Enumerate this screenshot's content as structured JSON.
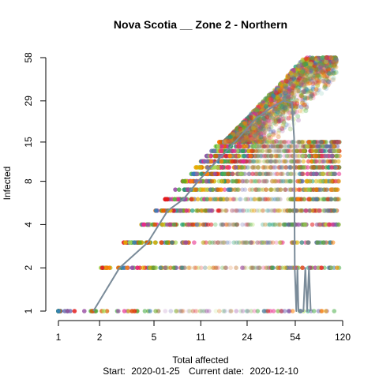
{
  "chart_data": {
    "type": "scatter",
    "title": "Nova Scotia __ Zone 2 - Northern",
    "xlabel": "Total affected",
    "ylabel": "Infected",
    "x_scale": "log",
    "y_scale": "log",
    "x_ticks": [
      1,
      2,
      5,
      11,
      24,
      54,
      120
    ],
    "y_ticks": [
      1,
      2,
      4,
      8,
      15,
      29,
      58
    ],
    "xlim": [
      1,
      120
    ],
    "ylim": [
      1,
      58
    ],
    "grid": false,
    "legend": "none",
    "footer": {
      "start_label": "Start:",
      "start_date": "2020-01-25",
      "current_label": "Current date:",
      "current_date": "2020-12-10"
    },
    "series": [
      {
        "kind": "observed-trajectory",
        "color": "#7a8b99",
        "points": [
          {
            "x": 1.8,
            "y": 1
          },
          {
            "x": 2.8,
            "y": 2
          },
          {
            "x": 4.5,
            "y": 3
          },
          {
            "x": 6.3,
            "y": 5
          },
          {
            "x": 8.2,
            "y": 6
          },
          {
            "x": 10.5,
            "y": 8
          },
          {
            "x": 13,
            "y": 10
          },
          {
            "x": 17,
            "y": 13
          },
          {
            "x": 22,
            "y": 17
          },
          {
            "x": 28,
            "y": 22
          },
          {
            "x": 36,
            "y": 26
          },
          {
            "x": 44,
            "y": 29
          },
          {
            "x": 51,
            "y": 28
          },
          {
            "x": 53,
            "y": 16
          },
          {
            "x": 53.5,
            "y": 2
          },
          {
            "x": 55,
            "y": 1
          },
          {
            "x": 56,
            "y": 2
          },
          {
            "x": 57,
            "y": 1
          },
          {
            "x": 62,
            "y": 1
          },
          {
            "x": 64,
            "y": 2
          },
          {
            "x": 66,
            "y": 1
          },
          {
            "x": 68,
            "y": 2
          },
          {
            "x": 70,
            "y": 1
          }
        ]
      }
    ],
    "simulation_cloud": {
      "palette": [
        "#e41a1c",
        "#d95f02",
        "#e7298a",
        "#7570b3",
        "#1b9e77",
        "#66a61e",
        "#e6ab02",
        "#377eb8",
        "#984ea3",
        "#4daf4a",
        "#a6d854",
        "#ff7f00"
      ],
      "front_max_x": 120,
      "front_max_y": 58
    }
  }
}
